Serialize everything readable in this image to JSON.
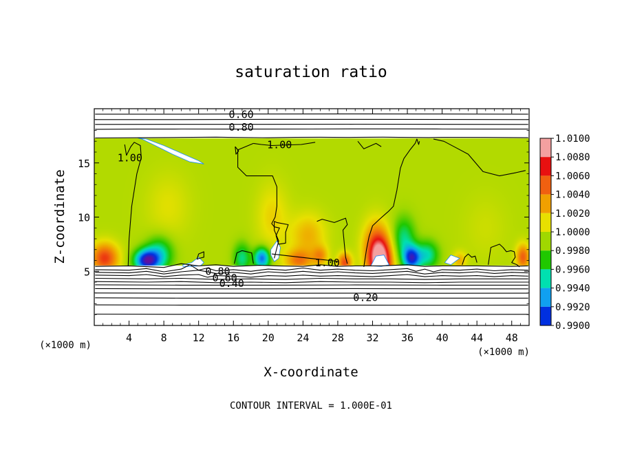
{
  "chart_data": {
    "type": "heatmap",
    "title": "saturation ratio",
    "xlabel": "X-coordinate",
    "ylabel": "Z-coordinate",
    "x_unit": "(×1000 m)",
    "z_unit": "(×1000 m)",
    "xlim": [
      0,
      50
    ],
    "ylim": [
      0,
      20
    ],
    "xticks": [
      4,
      8,
      12,
      16,
      20,
      24,
      28,
      32,
      36,
      40,
      44,
      48
    ],
    "yticks": [
      5,
      10,
      15
    ],
    "footer": "CONTOUR INTERVAL = 1.000E-01",
    "colorbar": {
      "levels": [
        "1.0100",
        "1.0080",
        "1.0060",
        "1.0040",
        "1.0020",
        "1.0000",
        "0.9980",
        "0.9960",
        "0.9940",
        "0.9920",
        "0.9900"
      ],
      "colors": [
        "#f4a0a0",
        "#e81010",
        "#f06010",
        "#f0a000",
        "#e8e000",
        "#a0d800",
        "#20c800",
        "#00e0b0",
        "#10a0f0",
        "#0030e0",
        "#6010a0"
      ]
    },
    "contour_labels": [
      {
        "text": "0.60",
        "x": 16.9,
        "y": 19.5
      },
      {
        "text": "0.80",
        "x": 16.9,
        "y": 18.3
      },
      {
        "text": "1.00",
        "x": 21.3,
        "y": 16.7
      },
      {
        "text": "1.00",
        "x": 4.1,
        "y": 15.5
      },
      {
        "text": "1.00",
        "x": 26.8,
        "y": 5.8
      },
      {
        "text": "0.80",
        "x": 14.2,
        "y": 5.0
      },
      {
        "text": "0.60",
        "x": 15.0,
        "y": 4.4
      },
      {
        "text": "0.40",
        "x": 15.8,
        "y": 3.9
      },
      {
        "text": "0.20",
        "x": 31.2,
        "y": 2.6
      }
    ],
    "layers": {
      "cloud_top_z": 17.3,
      "cloud_base_z": 5.5,
      "colorbar_range": [
        0.99,
        1.01
      ],
      "background_value": 1.0005
    },
    "anomalies": [
      {
        "x": 33.0,
        "z": 5.6,
        "value": 1.0095,
        "sx": 1.3,
        "sz": 2.2
      },
      {
        "x": 32.4,
        "z": 7.2,
        "value": 1.006,
        "sx": 1.5,
        "sz": 2.4
      },
      {
        "x": 1.2,
        "z": 6.2,
        "value": 1.007,
        "sx": 1.6,
        "sz": 1.4
      },
      {
        "x": 6.0,
        "z": 6.0,
        "value": 0.9915,
        "sx": 1.4,
        "sz": 1.0
      },
      {
        "x": 7.5,
        "z": 6.6,
        "value": 0.996,
        "sx": 1.6,
        "sz": 1.6
      },
      {
        "x": 17.0,
        "z": 6.2,
        "value": 0.9965,
        "sx": 1.0,
        "sz": 1.4
      },
      {
        "x": 19.3,
        "z": 6.2,
        "value": 0.993,
        "sx": 0.9,
        "sz": 1.0
      },
      {
        "x": 23.5,
        "z": 6.0,
        "value": 1.005,
        "sx": 1.6,
        "sz": 1.0
      },
      {
        "x": 24.6,
        "z": 8.3,
        "value": 1.0035,
        "sx": 2.0,
        "sz": 2.0
      },
      {
        "x": 26.0,
        "z": 6.4,
        "value": 1.004,
        "sx": 0.9,
        "sz": 0.9
      },
      {
        "x": 28.8,
        "z": 5.8,
        "value": 1.0065,
        "sx": 0.8,
        "sz": 0.9
      },
      {
        "x": 36.5,
        "z": 6.2,
        "value": 0.9925,
        "sx": 1.0,
        "sz": 1.1
      },
      {
        "x": 35.6,
        "z": 8.0,
        "value": 0.9965,
        "sx": 1.3,
        "sz": 2.0
      },
      {
        "x": 38.3,
        "z": 6.5,
        "value": 0.996,
        "sx": 1.3,
        "sz": 1.3
      },
      {
        "x": 42.0,
        "z": 6.0,
        "value": 1.0035,
        "sx": 0.8,
        "sz": 0.8
      },
      {
        "x": 49.3,
        "z": 6.3,
        "value": 1.006,
        "sx": 0.8,
        "sz": 1.2
      },
      {
        "x": 20.5,
        "z": 10.0,
        "value": 1.0025,
        "sx": 1.8,
        "sz": 3.0
      },
      {
        "x": 8.5,
        "z": 11.0,
        "value": 1.0018,
        "sx": 2.5,
        "sz": 3.0
      },
      {
        "x": 45.0,
        "z": 9.0,
        "value": 1.0012,
        "sx": 2.5,
        "sz": 3.0
      }
    ],
    "white_patches": [
      {
        "x": [
          5.0,
          6.0,
          8.0,
          10.0,
          12.0,
          12.6,
          11.0,
          9.0,
          7.0,
          5.5
        ],
        "z": [
          17.3,
          17.2,
          16.6,
          15.9,
          15.2,
          14.9,
          15.1,
          15.8,
          16.6,
          17.2
        ]
      },
      {
        "x": [
          10.2,
          11.2,
          12.0,
          12.6,
          12.2,
          11.2,
          10.2
        ],
        "z": [
          5.6,
          5.8,
          6.3,
          5.8,
          5.5,
          5.45,
          5.45
        ]
      },
      {
        "x": [
          20.3,
          21.0,
          21.4,
          21.2,
          20.7,
          20.3
        ],
        "z": [
          7.0,
          7.8,
          7.2,
          6.2,
          5.9,
          6.5
        ]
      },
      {
        "x": [
          31.8,
          32.4,
          33.3,
          33.9,
          33.0
        ],
        "z": [
          5.5,
          6.4,
          6.5,
          5.6,
          5.45
        ]
      },
      {
        "x": [
          40.3,
          41.0,
          42.0,
          41.0
        ],
        "z": [
          5.8,
          6.5,
          6.2,
          5.6
        ]
      }
    ],
    "contours": [
      {
        "label": "1.00",
        "x": [
          3.9,
          4.0,
          4.3,
          4.9,
          5.4,
          5.3,
          4.6,
          4.2,
          3.7,
          3.5
        ],
        "z": [
          5.5,
          8.0,
          11.0,
          14.0,
          15.5,
          16.6,
          16.9,
          16.5,
          15.7,
          16.7
        ]
      },
      {
        "label": "1.00",
        "x": [
          16.2,
          16.6,
          16.3,
          16.2
        ],
        "z": [
          16.5,
          16.1,
          15.8,
          16.5
        ]
      },
      {
        "label": "1.00",
        "x": [
          18.3,
          19.2,
          20.4,
          23.8,
          25.4
        ],
        "z": [
          16.8,
          16.7,
          16.6,
          16.7,
          16.9
        ]
      },
      {
        "label": "1.00",
        "x": [
          18.3,
          16.5,
          16.5,
          17.5,
          20.5,
          21.0,
          21.0,
          20.8,
          20.4,
          20.7,
          21.3,
          20.9,
          21.2,
          22.0,
          22.0,
          22.3,
          21.0,
          20.7,
          20.7,
          21.2,
          20.7
        ],
        "z": [
          16.8,
          16.2,
          14.6,
          13.8,
          13.8,
          12.8,
          11.0,
          10.0,
          9.4,
          9.1,
          9.0,
          8.3,
          7.5,
          7.6,
          8.6,
          9.3,
          9.5,
          9.6,
          8.8,
          7.8,
          6.2
        ]
      },
      {
        "label": "1.00",
        "x": [
          25.6,
          26.2,
          27.6,
          28.9,
          29.1,
          28.6,
          28.9,
          29.1
        ],
        "z": [
          9.6,
          9.8,
          9.5,
          9.9,
          9.3,
          8.8,
          6.3,
          5.7
        ]
      },
      {
        "label": "1.00",
        "x": [
          20.4,
          24.8,
          27.1,
          28.1
        ],
        "z": [
          6.6,
          6.2,
          6.0,
          5.9
        ]
      },
      {
        "label": "1.00",
        "x": [
          31.0,
          31.3,
          31.6,
          32.0,
          32.8,
          33.5,
          33.8,
          34.4,
          34.8,
          35.2,
          35.6,
          36.3,
          36.9,
          37.1,
          37.3,
          37.4
        ],
        "z": [
          5.4,
          7.0,
          8.2,
          9.2,
          9.8,
          10.3,
          10.5,
          11.0,
          12.5,
          14.5,
          15.4,
          16.2,
          16.8,
          17.2,
          16.7,
          17.0
        ]
      },
      {
        "label": "1.00",
        "x": [
          30.3,
          31.0,
          32.4,
          33.0
        ],
        "z": [
          17.0,
          16.3,
          16.8,
          16.5
        ]
      },
      {
        "label": "1.00",
        "x": [
          39.0,
          40.2,
          41.6,
          43.0,
          44.7,
          46.6,
          48.5,
          49.6
        ],
        "z": [
          17.2,
          17.0,
          16.4,
          15.8,
          14.2,
          13.8,
          14.1,
          14.3
        ]
      },
      {
        "label": "1.00",
        "x": [
          11.8,
          12.0,
          12.6,
          12.6,
          12.1,
          11.8
        ],
        "z": [
          6.1,
          6.6,
          6.8,
          6.3,
          6.2,
          6.1
        ]
      },
      {
        "label": "1.00",
        "x": [
          16.1,
          16.4,
          17.0,
          18.1,
          18.3
        ],
        "z": [
          5.7,
          6.7,
          6.9,
          6.7,
          5.7
        ]
      },
      {
        "label": "1.00",
        "x": [
          42.3,
          42.6,
          43.0,
          43.4,
          43.8,
          44.0
        ],
        "z": [
          5.6,
          6.3,
          6.6,
          6.3,
          6.4,
          5.8
        ]
      },
      {
        "label": "1.00",
        "x": [
          45.3,
          45.6,
          46.6,
          47.0,
          47.4,
          47.9,
          48.3,
          48.4,
          48.0,
          48.6,
          48.9
        ],
        "z": [
          5.6,
          7.2,
          7.5,
          7.2,
          6.8,
          6.9,
          6.8,
          6.3,
          5.8,
          5.6,
          5.4
        ]
      },
      {
        "label": "1.00",
        "x": [
          0.1,
          5.0,
          10.0,
          14.0,
          16.0,
          20.0,
          21.3,
          23.2,
          26.0,
          29.0,
          30.0,
          33.2,
          35.0,
          38.5,
          40.0,
          45.0,
          49.9
        ],
        "z": [
          17.3,
          17.32,
          17.35,
          17.38,
          17.35,
          17.32,
          17.34,
          17.36,
          17.37,
          17.35,
          17.36,
          17.38,
          17.36,
          17.34,
          17.36,
          17.35,
          17.33
        ]
      },
      {
        "label": "0.80",
        "x": [
          0.1,
          5.0,
          10.0,
          15.0,
          16.1,
          19.8,
          25.0,
          30.0,
          35.0,
          40.0,
          45.0,
          49.9
        ],
        "z": [
          18.1,
          18.12,
          18.13,
          18.12,
          18.12,
          18.12,
          18.13,
          18.14,
          18.14,
          18.13,
          18.12,
          18.12
        ]
      },
      {
        "label": "",
        "x": [
          0.1,
          10.0,
          20.0,
          30.0,
          40.0,
          49.9
        ],
        "z": [
          18.55,
          18.56,
          18.56,
          18.57,
          18.56,
          18.55
        ]
      },
      {
        "label": "",
        "x": [
          0.1,
          10.0,
          20.0,
          30.0,
          40.0,
          49.9
        ],
        "z": [
          19.0,
          19.0,
          19.02,
          19.02,
          19.01,
          19.0
        ]
      },
      {
        "label": "0.60",
        "x": [
          0.1,
          10.0,
          16.1,
          19.8,
          30.0,
          40.0,
          49.9
        ],
        "z": [
          19.5,
          19.5,
          19.51,
          19.51,
          19.52,
          19.51,
          19.5
        ]
      },
      {
        "label": "",
        "x": [
          0.1,
          4.0,
          8.0,
          10.0,
          12.0,
          14.0,
          16.0,
          19.0,
          21.0,
          24.0,
          26.0,
          28.0,
          30.0,
          33.0,
          36.0,
          38.0,
          40.0,
          44.0,
          48.0,
          49.9
        ],
        "z": [
          5.45,
          5.5,
          5.35,
          5.7,
          5.5,
          5.6,
          5.45,
          5.55,
          5.5,
          5.45,
          5.6,
          5.45,
          5.5,
          5.5,
          5.6,
          5.45,
          5.5,
          5.5,
          5.45,
          5.5
        ]
      },
      {
        "label": "",
        "x": [
          0.1,
          4.0,
          6.0,
          8.0,
          10.0,
          11.0,
          12.0,
          13.0,
          14.0,
          16.0,
          18.0,
          20.0,
          22.0,
          24.0,
          26.0,
          28.0,
          30.0,
          32.0,
          34.0,
          36.0,
          37.0,
          38.0,
          39.0,
          40.0,
          42.0,
          44.0,
          46.0,
          48.0,
          49.9
        ],
        "z": [
          5.15,
          5.1,
          5.25,
          4.95,
          5.2,
          5.6,
          5.1,
          5.3,
          5.05,
          5.15,
          5.0,
          5.2,
          5.1,
          5.3,
          5.1,
          5.2,
          5.1,
          5.05,
          5.15,
          5.25,
          5.0,
          5.2,
          4.95,
          5.15,
          5.1,
          5.2,
          5.05,
          5.15,
          5.1
        ]
      },
      {
        "label": "",
        "x": [
          0.1,
          4.0,
          6.0,
          8.0,
          10.0,
          12.0,
          14.0,
          16.0,
          18.0,
          20.0,
          22.0,
          24.0,
          26.0,
          28.0,
          30.0,
          32.0,
          34.0,
          36.0,
          38.0,
          40.0,
          42.0,
          44.0,
          46.0,
          48.0,
          49.9
        ],
        "z": [
          4.9,
          4.85,
          5.0,
          4.75,
          4.95,
          5.1,
          4.8,
          4.9,
          4.75,
          4.95,
          4.85,
          5.0,
          4.85,
          4.95,
          4.85,
          4.8,
          4.9,
          5.0,
          4.75,
          4.9,
          4.85,
          4.95,
          4.8,
          4.9,
          4.85
        ]
      },
      {
        "label": "0.80",
        "x": [
          0.1,
          4.0,
          6.0,
          8.0,
          10.0,
          12.0,
          13.0,
          14.0,
          16.0,
          18.0,
          20.0,
          22.0,
          24.0,
          26.0,
          28.0,
          30.0,
          32.0,
          34.0,
          36.0,
          38.0,
          40.0,
          42.0,
          44.0,
          46.0,
          48.0,
          49.9
        ],
        "z": [
          4.65,
          4.6,
          4.7,
          4.5,
          4.65,
          4.7,
          4.45,
          4.6,
          4.55,
          4.45,
          4.6,
          4.55,
          4.65,
          4.55,
          4.6,
          4.55,
          4.5,
          4.6,
          4.7,
          4.5,
          4.6,
          4.55,
          4.6,
          4.5,
          4.6,
          4.55
        ]
      },
      {
        "label": "",
        "x": [
          0.1,
          6.0,
          10.0,
          14.0,
          18.0,
          22.0,
          26.0,
          30.0,
          34.0,
          38.0,
          42.0,
          46.0,
          49.9
        ],
        "z": [
          4.35,
          4.3,
          4.35,
          4.25,
          4.3,
          4.25,
          4.35,
          4.3,
          4.3,
          4.25,
          4.3,
          4.3,
          4.3
        ]
      },
      {
        "label": "0.60",
        "x": [
          0.1,
          6.0,
          10.0,
          14.0,
          18.0,
          22.0,
          26.0,
          30.0,
          34.0,
          38.0,
          42.0,
          46.0,
          49.9
        ],
        "z": [
          4.05,
          4.0,
          4.05,
          3.95,
          4.0,
          3.95,
          4.05,
          4.0,
          4.0,
          3.95,
          4.0,
          4.0,
          4.0
        ]
      },
      {
        "label": "",
        "x": [
          0.1,
          10.0,
          20.0,
          30.0,
          40.0,
          49.9
        ],
        "z": [
          3.75,
          3.72,
          3.72,
          3.74,
          3.72,
          3.72
        ]
      },
      {
        "label": "0.40",
        "x": [
          0.1,
          10.0,
          20.0,
          30.0,
          40.0,
          49.9
        ],
        "z": [
          3.4,
          3.38,
          3.38,
          3.4,
          3.38,
          3.38
        ]
      },
      {
        "label": "",
        "x": [
          0.1,
          10.0,
          20.0,
          30.0,
          40.0,
          49.9
        ],
        "z": [
          3.0,
          2.98,
          2.97,
          2.98,
          2.97,
          2.98
        ]
      },
      {
        "label": "0.20",
        "x": [
          0.1,
          10.0,
          20.0,
          30.0,
          40.0,
          49.9
        ],
        "z": [
          2.55,
          2.52,
          2.52,
          2.53,
          2.52,
          2.52
        ]
      },
      {
        "label": "",
        "x": [
          0.1,
          10.0,
          20.0,
          30.0,
          40.0,
          49.9
        ],
        "z": [
          1.9,
          1.88,
          1.87,
          1.88,
          1.87,
          1.88
        ]
      },
      {
        "label": "",
        "x": [
          0.1,
          10.0,
          20.0,
          30.0,
          40.0,
          49.9
        ],
        "z": [
          1.05,
          1.03,
          1.02,
          1.03,
          1.02,
          1.03
        ]
      }
    ]
  }
}
